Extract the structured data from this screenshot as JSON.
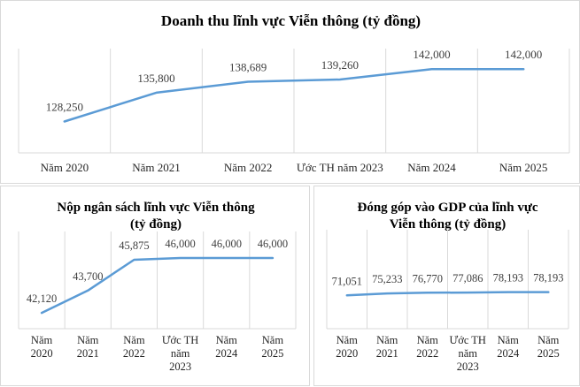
{
  "chart_data": [
    {
      "type": "line",
      "title": "Doanh thu lĩnh vực Viễn thông (tỷ đồng)",
      "categories": [
        "Năm 2020",
        "Năm 2021",
        "Năm 2022",
        "Ước TH năm 2023",
        "Năm 2024",
        "Năm 2025"
      ],
      "values": [
        128250,
        135800,
        138689,
        139260,
        142000,
        142000
      ],
      "data_labels": [
        "128,250",
        "135,800",
        "138,689",
        "139,260",
        "142,000",
        "142,000"
      ],
      "ylim": [
        120000,
        146000
      ],
      "grid": "vertical",
      "legend": "none",
      "line_color": "#5b9bd5"
    },
    {
      "type": "line",
      "title": "Nộp ngân sách lĩnh vực Viễn thông (tỷ đồng)",
      "title_lines": [
        "Nộp ngân sách lĩnh vực Viễn thông",
        "(tỷ đồng)"
      ],
      "categories": [
        "Năm 2020",
        "Năm 2021",
        "Năm 2022",
        "Ước TH năm 2023",
        "Năm 2024",
        "Năm 2025"
      ],
      "category_lines": [
        [
          "Năm",
          "2020"
        ],
        [
          "Năm",
          "2021"
        ],
        [
          "Năm",
          "2022"
        ],
        [
          "Ước TH",
          "năm",
          "2023"
        ],
        [
          "Năm",
          "2024"
        ],
        [
          "Năm",
          "2025"
        ]
      ],
      "values": [
        42120,
        43700,
        45875,
        46000,
        46000,
        46000
      ],
      "data_labels": [
        "42,120",
        "43,700",
        "45,875",
        "46,000",
        "46,000",
        "46,000"
      ],
      "ylim": [
        41000,
        47500
      ],
      "grid": "vertical",
      "legend": "none",
      "line_color": "#5b9bd5"
    },
    {
      "type": "line",
      "title": "Đóng góp vào GDP của lĩnh vực Viễn thông (tỷ đồng)",
      "title_lines": [
        "Đóng góp vào GDP của lĩnh vực",
        "Viễn thông (tỷ đồng)"
      ],
      "categories": [
        "Năm 2020",
        "Năm 2021",
        "Năm 2022",
        "Ước TH năm 2023",
        "Năm 2024",
        "Năm 2025"
      ],
      "category_lines": [
        [
          "Năm",
          "2020"
        ],
        [
          "Năm",
          "2021"
        ],
        [
          "Năm",
          "2022"
        ],
        [
          "Ước TH",
          "năm",
          "2023"
        ],
        [
          "Năm",
          "2024"
        ],
        [
          "Năm",
          "2025"
        ]
      ],
      "values": [
        71051,
        75233,
        76770,
        77086,
        78193,
        78193
      ],
      "data_labels": [
        "71,051",
        "75,233",
        "76,770",
        "77,086",
        "78,193",
        "78,193"
      ],
      "ylim": [
        0,
        200000
      ],
      "grid": "vertical",
      "legend": "none",
      "line_color": "#5b9bd5"
    }
  ]
}
